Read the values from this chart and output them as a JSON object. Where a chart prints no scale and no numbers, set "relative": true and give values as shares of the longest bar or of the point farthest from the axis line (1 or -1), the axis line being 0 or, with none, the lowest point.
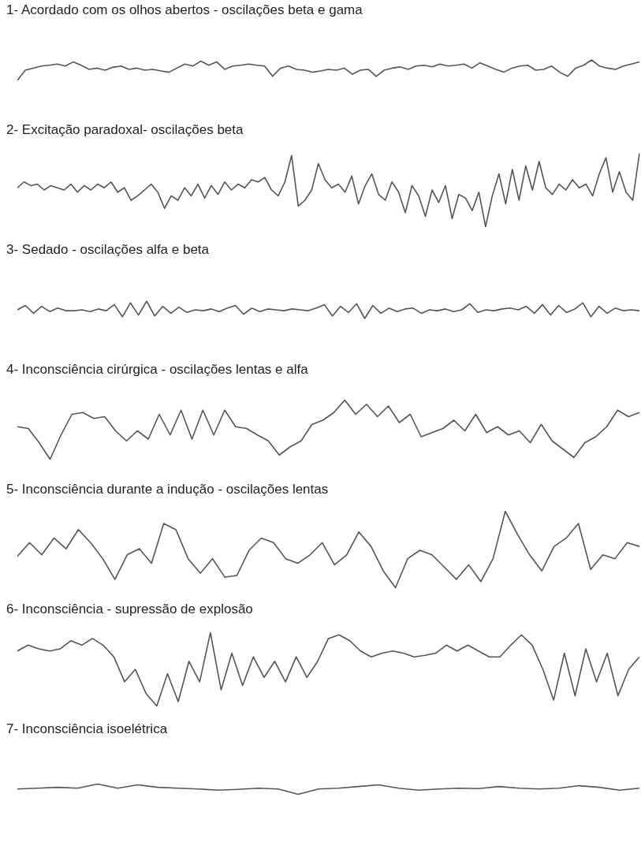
{
  "chart_data": [
    {
      "type": "line",
      "title": "1- Acordado com os olhos abertos - oscilações beta e gama",
      "relative": true,
      "categories": [
        null,
        null,
        null,
        null,
        null,
        null,
        null,
        null,
        null,
        null,
        null,
        null,
        null,
        null,
        null,
        null,
        null,
        null,
        null,
        null,
        null,
        null,
        null,
        null,
        null,
        null,
        null,
        null,
        null,
        null,
        null,
        null,
        null,
        null,
        null,
        null,
        null,
        null,
        null,
        null,
        null,
        null,
        null,
        null,
        null,
        null,
        null,
        null,
        null,
        null,
        null,
        null,
        null,
        null,
        null,
        null,
        null,
        null,
        null,
        null,
        null,
        null,
        null,
        null,
        null,
        null,
        null,
        null,
        null,
        null,
        null,
        null,
        null,
        null,
        null,
        null,
        null,
        null,
        null
      ],
      "series": [
        {
          "color": "#555555",
          "values": [
            0,
            0.5,
            0.6,
            0.7,
            0.74,
            0.8,
            0.7,
            0.9,
            0.74,
            0.54,
            0.6,
            0.5,
            0.64,
            0.7,
            0.54,
            0.6,
            0.5,
            0.54,
            0.46,
            0.4,
            0.6,
            0.8,
            0.7,
            0.94,
            0.74,
            0.9,
            0.54,
            0.7,
            0.74,
            0.8,
            0.74,
            0.7,
            0.2,
            0.6,
            0.7,
            0.54,
            0.5,
            0.4,
            0.46,
            0.54,
            0.5,
            0.6,
            0.3,
            0.5,
            0.54,
            0.2,
            0.5,
            0.6,
            0.66,
            0.54,
            0.7,
            0.74,
            0.66,
            0.8,
            0.7,
            0.74,
            0.8,
            0.6,
            0.86,
            0.7,
            0.54,
            0.4,
            0.6,
            0.7,
            0.74,
            0.5,
            0.54,
            0.7,
            0.4,
            0.2,
            0.6,
            0.74,
            1,
            0.7,
            0.6,
            0.54,
            0.7,
            0.8,
            0.9
          ]
        }
      ]
    },
    {
      "type": "line",
      "title": "2- Excitação paradoxal- oscilações beta",
      "relative": true,
      "categories": [
        null,
        null,
        null,
        null,
        null,
        null,
        null,
        null,
        null,
        null,
        null,
        null,
        null,
        null,
        null,
        null,
        null,
        null,
        null,
        null,
        null,
        null,
        null,
        null,
        null,
        null,
        null,
        null,
        null,
        null,
        null,
        null,
        null,
        null,
        null,
        null,
        null,
        null,
        null,
        null,
        null,
        null,
        null,
        null,
        null,
        null,
        null,
        null,
        null,
        null,
        null,
        null,
        null,
        null,
        null,
        null,
        null,
        null,
        null,
        null,
        null,
        null,
        null,
        null,
        null,
        null,
        null,
        null,
        null,
        null,
        null,
        null,
        null,
        null,
        null,
        null,
        null,
        null,
        null,
        null,
        null,
        null,
        null,
        null,
        null,
        null,
        null,
        null,
        null,
        null,
        null,
        null,
        null,
        null
      ],
      "series": [
        {
          "color": "#555555",
          "values": [
            0.53,
            0.61,
            0.56,
            0.58,
            0.5,
            0.56,
            0.53,
            0.5,
            0.58,
            0.47,
            0.56,
            0.5,
            0.58,
            0.53,
            0.61,
            0.47,
            0.53,
            0.36,
            0.42,
            0.5,
            0.58,
            0.47,
            0.25,
            0.42,
            0.36,
            0.53,
            0.42,
            0.58,
            0.39,
            0.56,
            0.44,
            0.61,
            0.5,
            0.58,
            0.53,
            0.64,
            0.61,
            0.67,
            0.5,
            0.42,
            0.61,
            0.97,
            0.28,
            0.36,
            0.5,
            0.86,
            0.64,
            0.53,
            0.58,
            0.47,
            0.69,
            0.31,
            0.56,
            0.72,
            0.44,
            0.36,
            0.61,
            0.47,
            0.19,
            0.56,
            0.42,
            0.14,
            0.5,
            0.33,
            0.56,
            0.11,
            0.44,
            0.39,
            0.22,
            0.47,
            0,
            0.42,
            0.72,
            0.31,
            0.78,
            0.36,
            0.83,
            0.5,
            0.89,
            0.53,
            0.44,
            0.58,
            0.5,
            0.64,
            0.53,
            0.58,
            0.42,
            0.72,
            0.94,
            0.47,
            0.75,
            0.47,
            0.36,
            1
          ]
        }
      ]
    },
    {
      "type": "line",
      "title": "3- Sedado - oscilações alfa e beta",
      "relative": true,
      "categories": [
        null,
        null,
        null,
        null,
        null,
        null,
        null,
        null,
        null,
        null,
        null,
        null,
        null,
        null,
        null,
        null,
        null,
        null,
        null,
        null,
        null,
        null,
        null,
        null,
        null,
        null,
        null,
        null,
        null,
        null,
        null,
        null,
        null,
        null,
        null,
        null,
        null,
        null,
        null,
        null,
        null,
        null,
        null,
        null,
        null,
        null,
        null,
        null,
        null,
        null,
        null,
        null,
        null,
        null,
        null,
        null,
        null,
        null,
        null,
        null,
        null,
        null,
        null,
        null,
        null,
        null,
        null,
        null,
        null,
        null,
        null,
        null,
        null,
        null,
        null,
        null,
        null,
        null
      ],
      "series": [
        {
          "color": "#555555",
          "values": [
            0.5,
            0.75,
            0.3,
            0.7,
            0.4,
            0.6,
            0.45,
            0.45,
            0.5,
            0.4,
            0.55,
            0.45,
            0.8,
            0.1,
            0.9,
            0.2,
            1,
            0.15,
            0.7,
            0.3,
            0.65,
            0.35,
            0.5,
            0.45,
            0.55,
            0.4,
            0.6,
            0.75,
            0.25,
            0.6,
            0.4,
            0.55,
            0.5,
            0.45,
            0.55,
            0.5,
            0.45,
            0.6,
            0.8,
            0.15,
            0.7,
            0.35,
            0.85,
            0,
            0.75,
            0.3,
            0.6,
            0.4,
            0.55,
            0.6,
            0.3,
            0.5,
            0.45,
            0.55,
            0.4,
            0.5,
            0.85,
            0.35,
            0.5,
            0.45,
            0.55,
            0.6,
            0.5,
            0.7,
            0.3,
            0.8,
            0.2,
            0.75,
            0.35,
            0.55,
            0.9,
            0.1,
            0.7,
            0.3,
            0.6,
            0.45,
            0.5,
            0.45
          ]
        }
      ]
    },
    {
      "type": "line",
      "title": "4- Inconsciência cirúrgica - oscilações lentas e alfa",
      "relative": true,
      "categories": [
        null,
        null,
        null,
        null,
        null,
        null,
        null,
        null,
        null,
        null,
        null,
        null,
        null,
        null,
        null,
        null,
        null,
        null,
        null,
        null,
        null,
        null,
        null,
        null,
        null,
        null,
        null,
        null,
        null,
        null,
        null,
        null,
        null,
        null,
        null,
        null,
        null,
        null,
        null,
        null,
        null,
        null,
        null,
        null,
        null,
        null,
        null,
        null,
        null,
        null,
        null,
        null,
        null,
        null,
        null,
        null,
        null,
        null
      ],
      "series": [
        {
          "color": "#555555",
          "values": [
            0.55,
            0.52,
            0.28,
            0,
            0.41,
            0.76,
            0.79,
            0.69,
            0.72,
            0.48,
            0.31,
            0.48,
            0.34,
            0.76,
            0.41,
            0.83,
            0.34,
            0.83,
            0.41,
            0.83,
            0.55,
            0.52,
            0.41,
            0.31,
            0.07,
            0.21,
            0.31,
            0.59,
            0.66,
            0.79,
            1,
            0.76,
            0.93,
            0.72,
            0.9,
            0.62,
            0.76,
            0.38,
            0.45,
            0.52,
            0.66,
            0.48,
            0.76,
            0.45,
            0.55,
            0.41,
            0.48,
            0.28,
            0.59,
            0.31,
            0.17,
            0.03,
            0.28,
            0.38,
            0.55,
            0.83,
            0.72,
            0.79
          ]
        }
      ]
    },
    {
      "type": "line",
      "title": "5- Inconsciência durante a indução - oscilações lentas",
      "relative": true,
      "categories": [
        null,
        null,
        null,
        null,
        null,
        null,
        null,
        null,
        null,
        null,
        null,
        null,
        null,
        null,
        null,
        null,
        null,
        null,
        null,
        null,
        null,
        null,
        null,
        null,
        null,
        null,
        null,
        null,
        null,
        null,
        null,
        null,
        null,
        null,
        null,
        null,
        null,
        null,
        null,
        null,
        null,
        null,
        null,
        null,
        null,
        null,
        null,
        null,
        null,
        null,
        null,
        null
      ],
      "series": [
        {
          "color": "#555555",
          "values": [
            0.41,
            0.59,
            0.43,
            0.65,
            0.51,
            0.76,
            0.59,
            0.38,
            0.11,
            0.43,
            0.51,
            0.32,
            0.84,
            0.76,
            0.38,
            0.19,
            0.38,
            0.14,
            0.16,
            0.49,
            0.65,
            0.59,
            0.38,
            0.32,
            0.43,
            0.59,
            0.3,
            0.43,
            0.73,
            0.54,
            0.22,
            0,
            0.38,
            0.49,
            0.43,
            0.27,
            0.11,
            0.3,
            0.08,
            0.38,
            1,
            0.7,
            0.43,
            0.22,
            0.54,
            0.65,
            0.84,
            0.24,
            0.43,
            0.38,
            0.59,
            0.54
          ]
        }
      ]
    },
    {
      "type": "line",
      "title": "6- Inconsciência - supressão de explosão",
      "relative": true,
      "categories": [
        null,
        null,
        null,
        null,
        null,
        null,
        null,
        null,
        null,
        null,
        null,
        null,
        null,
        null,
        null,
        null,
        null,
        null,
        null,
        null,
        null,
        null,
        null,
        null,
        null,
        null,
        null,
        null,
        null,
        null,
        null,
        null,
        null,
        null,
        null,
        null,
        null,
        null,
        null,
        null,
        null,
        null,
        null,
        null,
        null,
        null,
        null,
        null,
        null,
        null,
        null,
        null,
        null,
        null,
        null,
        null,
        null,
        null,
        null
      ],
      "series": [
        {
          "color": "#555555",
          "values": [
            0.75,
            0.83,
            0.78,
            0.75,
            0.78,
            0.89,
            0.83,
            0.92,
            0.83,
            0.67,
            0.33,
            0.5,
            0.17,
            0,
            0.44,
            0.06,
            0.61,
            0.33,
            1,
            0.22,
            0.72,
            0.28,
            0.67,
            0.39,
            0.61,
            0.33,
            0.67,
            0.39,
            0.61,
            0.92,
            0.97,
            0.89,
            0.75,
            0.67,
            0.72,
            0.75,
            0.72,
            0.67,
            0.69,
            0.72,
            0.83,
            0.75,
            0.83,
            0.75,
            0.67,
            0.67,
            0.83,
            0.97,
            0.83,
            0.5,
            0.08,
            0.72,
            0.14,
            0.78,
            0.33,
            0.72,
            0.14,
            0.5,
            0.67
          ]
        }
      ]
    },
    {
      "type": "line",
      "title": "7- Inconsciência isoelétrica",
      "relative": true,
      "categories": [
        null,
        null,
        null,
        null,
        null,
        null,
        null,
        null,
        null,
        null,
        null,
        null,
        null,
        null,
        null,
        null,
        null,
        null,
        null,
        null,
        null,
        null,
        null,
        null,
        null,
        null,
        null,
        null,
        null,
        null,
        null,
        null
      ],
      "series": [
        {
          "color": "#555555",
          "values": [
            0.52,
            0.6,
            0.68,
            0.6,
            1,
            0.6,
            0.92,
            0.68,
            0.6,
            0.52,
            0.4,
            0.48,
            0.6,
            0.52,
            0,
            0.52,
            0.6,
            0.76,
            0.92,
            0.6,
            0.4,
            0.52,
            0.6,
            0.56,
            0.76,
            0.6,
            0.52,
            0.6,
            0.84,
            0.68,
            0.4,
            0.6
          ]
        }
      ]
    }
  ]
}
